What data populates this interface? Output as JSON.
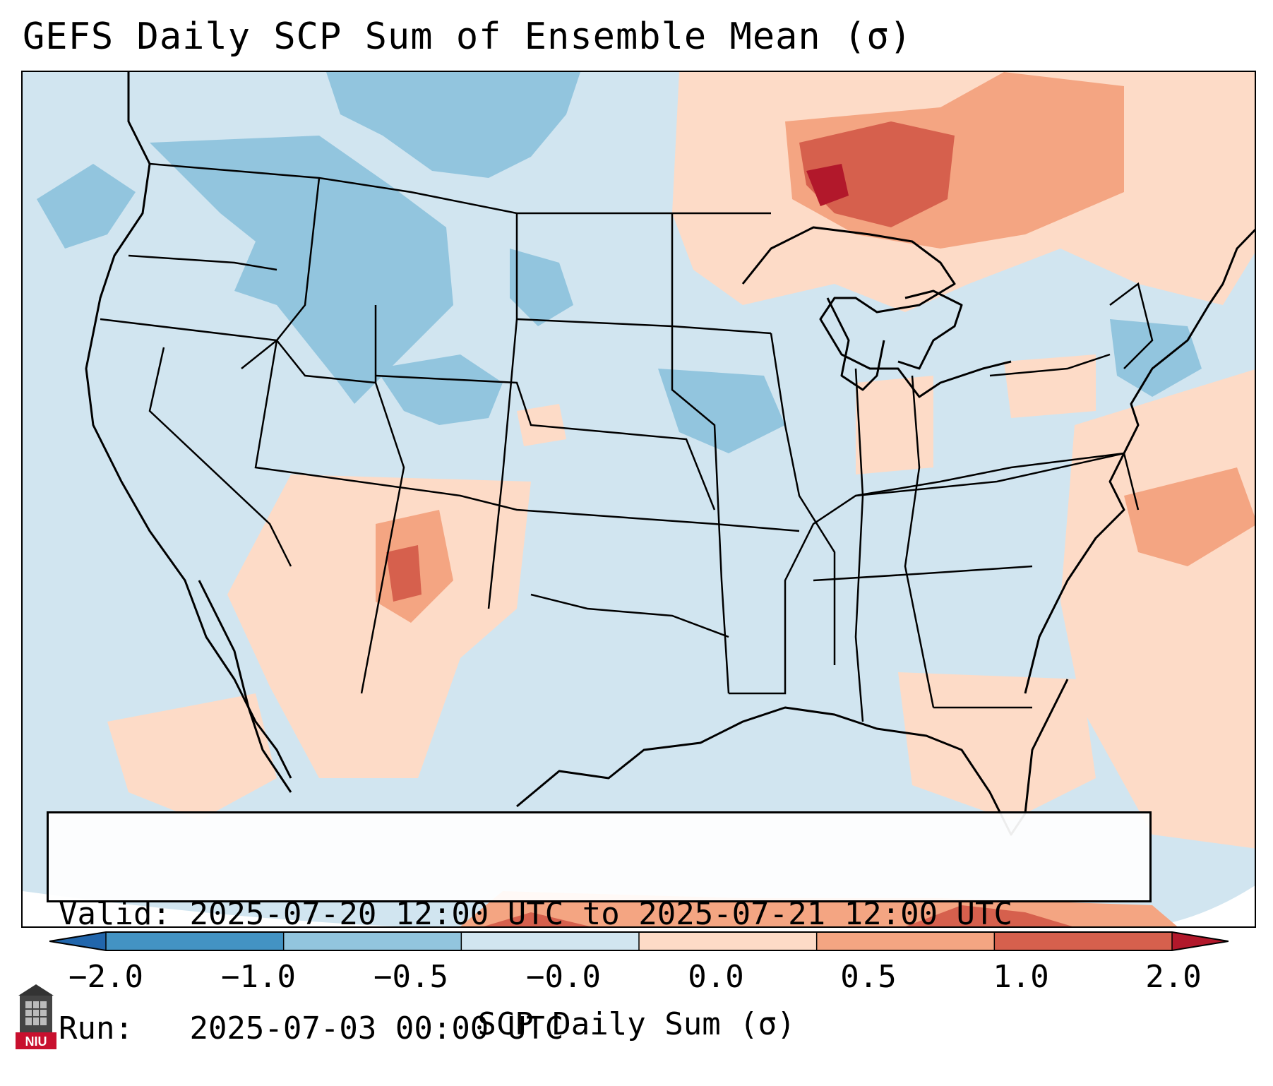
{
  "title": "GEFS Daily SCP Sum of Ensemble Mean (σ)",
  "info": {
    "valid_label": "Valid:",
    "valid_value": "2025-07-20 12:00 UTC to 2025-07-21 12:00 UTC",
    "run_label": "Run:",
    "run_value": "2025-07-03 00:00 UTC"
  },
  "colorbar": {
    "label": "SCP Daily Sum (σ)",
    "ticks": [
      "−2.0",
      "−1.0",
      "−0.5",
      "−0.0",
      "0.0",
      "0.5",
      "1.0",
      "2.0"
    ],
    "colors": [
      "#2166ac",
      "#4393c3",
      "#92c5de",
      "#d1e5f0",
      "#fddbc7",
      "#f4a582",
      "#d6604d",
      "#b2182b"
    ],
    "extend": "both"
  },
  "map": {
    "region": "Continental United States",
    "background_color": "#d1e5f0"
  },
  "logo": {
    "text": "NIU",
    "icon": "niu-tower-icon"
  }
}
